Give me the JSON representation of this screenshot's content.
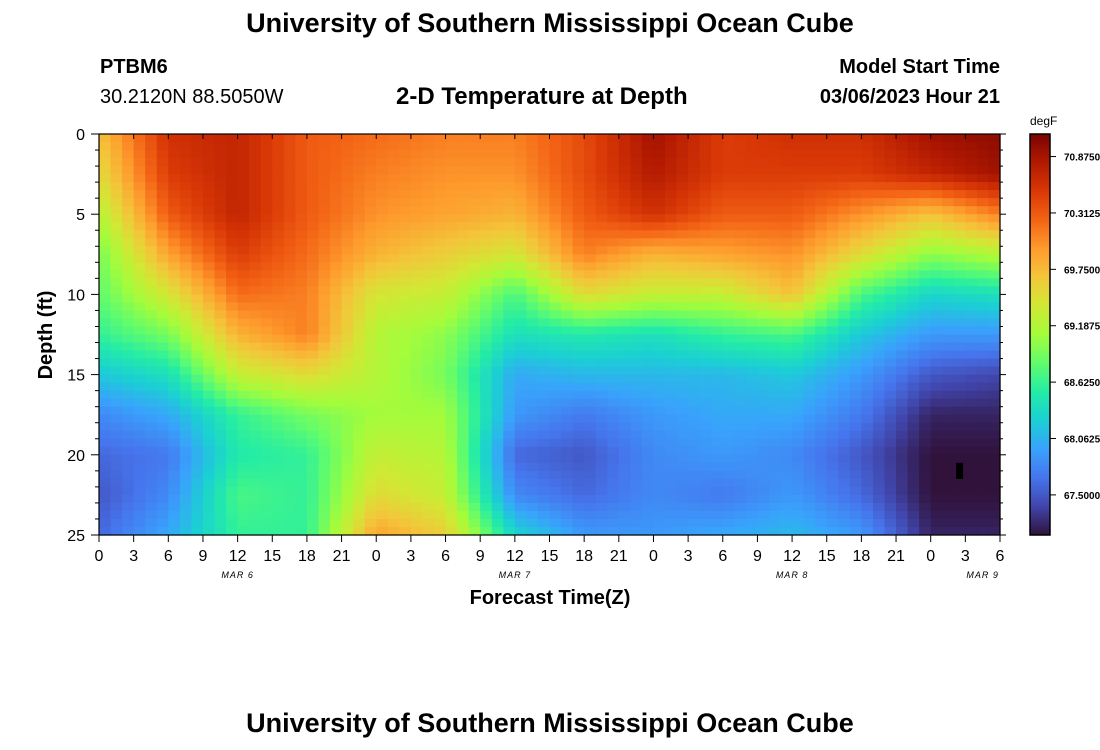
{
  "header": {
    "title": "University of Southern Mississippi Ocean Cube",
    "station": "PTBM6",
    "coords": "30.2120N  88.5050W",
    "subtitle": "2-D Temperature at Depth",
    "model_start_label": "Model Start Time",
    "model_start_value": "03/06/2023 Hour 21"
  },
  "footer": {
    "title": "University of Southern Mississippi Ocean Cube"
  },
  "chart_data": {
    "type": "heatmap",
    "title": "2-D Temperature at Depth",
    "xlabel": "Forecast Time(Z)",
    "ylabel": "Depth (ft)",
    "x_ticks": [
      "0",
      "3",
      "6",
      "9",
      "12",
      "15",
      "18",
      "21",
      "0",
      "3",
      "6",
      "9",
      "12",
      "15",
      "18",
      "21",
      "0",
      "3",
      "6",
      "9",
      "12",
      "15",
      "18",
      "21",
      "0",
      "3",
      "6"
    ],
    "date_labels": [
      {
        "label": "MAR 6",
        "tick_index": 4
      },
      {
        "label": "MAR 7",
        "tick_index": 12
      },
      {
        "label": "MAR 8",
        "tick_index": 20
      },
      {
        "label": "MAR 9",
        "tick_index": 25.5
      }
    ],
    "y_ticks": [
      "0",
      "5",
      "10",
      "15",
      "20",
      "25"
    ],
    "ylim": [
      25,
      0
    ],
    "x_range_hours": [
      0,
      78
    ],
    "colorbar": {
      "unit": "degF",
      "ticks": [
        "70.8750",
        "70.3125",
        "69.7500",
        "69.1875",
        "68.6250",
        "68.0625",
        "67.5000"
      ],
      "range": [
        67.1,
        71.1
      ],
      "colors": [
        "#30123b",
        "#4145ab",
        "#4675ed",
        "#39a2fc",
        "#1bcfd4",
        "#24eca6",
        "#61fc6c",
        "#a4fc3b",
        "#d1e834",
        "#f3c63a",
        "#fe9b2d",
        "#f36315",
        "#d93806",
        "#b11901",
        "#7a0402"
      ]
    },
    "grid": false,
    "z_description": "Water temperature (degF) vs forecast hour (x) and depth in ft (y)",
    "z_grid": {
      "x_hours": [
        0,
        6,
        12,
        18,
        24,
        30,
        36,
        42,
        48,
        54,
        60,
        66,
        72,
        78
      ],
      "depths_ft": [
        0,
        2.5,
        5,
        7.5,
        10,
        12.5,
        15,
        17.5,
        20,
        22.5,
        25
      ],
      "values": [
        [
          69.7,
          70.6,
          70.7,
          70.3,
          70.2,
          70.1,
          70.1,
          70.4,
          70.9,
          70.5,
          70.6,
          70.6,
          70.9,
          71.0
        ],
        [
          69.5,
          70.5,
          70.7,
          70.3,
          70.1,
          70.0,
          70.0,
          70.4,
          70.8,
          70.5,
          70.5,
          70.5,
          70.7,
          70.9
        ],
        [
          69.2,
          70.3,
          70.7,
          70.3,
          70.0,
          69.9,
          69.8,
          70.3,
          70.6,
          70.3,
          70.3,
          70.0,
          69.7,
          70.1
        ],
        [
          68.9,
          69.9,
          70.5,
          70.2,
          69.8,
          69.6,
          69.4,
          70.1,
          69.8,
          69.9,
          70.0,
          69.5,
          69.0,
          69.2
        ],
        [
          68.8,
          69.4,
          70.2,
          70.1,
          69.4,
          69.3,
          68.7,
          69.5,
          69.3,
          69.3,
          69.7,
          68.7,
          68.3,
          68.4
        ],
        [
          68.6,
          68.9,
          69.8,
          70.1,
          69.2,
          69.0,
          68.4,
          68.5,
          68.4,
          68.6,
          68.7,
          68.2,
          67.9,
          67.9
        ],
        [
          68.2,
          68.4,
          69.3,
          69.5,
          69.2,
          68.9,
          68.0,
          68.1,
          68.1,
          68.1,
          68.2,
          67.9,
          67.5,
          67.4
        ],
        [
          67.8,
          68.0,
          68.6,
          68.9,
          69.1,
          69.1,
          67.9,
          67.7,
          67.9,
          68.0,
          68.0,
          67.7,
          67.2,
          67.2
        ],
        [
          67.6,
          67.7,
          68.5,
          68.6,
          69.3,
          69.2,
          67.6,
          67.5,
          67.8,
          67.9,
          67.8,
          67.5,
          67.1,
          67.1
        ],
        [
          67.5,
          67.8,
          68.7,
          68.6,
          69.5,
          69.3,
          67.8,
          67.6,
          67.8,
          67.7,
          67.9,
          67.6,
          67.1,
          67.1
        ],
        [
          67.6,
          68.0,
          68.6,
          68.6,
          69.9,
          69.6,
          68.3,
          67.9,
          67.9,
          68.0,
          68.1,
          67.9,
          67.2,
          67.2
        ]
      ]
    },
    "annotations": [
      {
        "type": "marker",
        "hour": 74.5,
        "depth_ft": 21,
        "color": "#000000"
      }
    ]
  }
}
